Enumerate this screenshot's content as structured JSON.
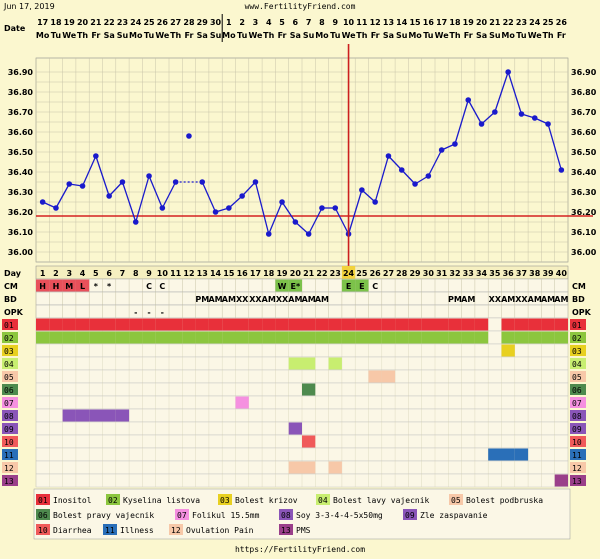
{
  "header": {
    "date": "Jun 17, 2019",
    "site_url": "www.FertilityFriend.com",
    "footer_url": "https://FertilityFriend.com"
  },
  "colors": {
    "background": "#fbf7cf",
    "temp_line": "#1a1acc",
    "coverline": "#d42020",
    "ovulation_line": "#cc1f1f",
    "grid": "#c8c4a8"
  },
  "chart_data": {
    "type": "line",
    "xlabel": "Day",
    "row_labels": {
      "date": "Date",
      "day": "Day",
      "cm": "CM",
      "bd": "BD",
      "opk": "OPK"
    },
    "dates": [
      "17",
      "18",
      "19",
      "20",
      "21",
      "22",
      "23",
      "24",
      "25",
      "26",
      "27",
      "28",
      "29",
      "30",
      "1",
      "2",
      "3",
      "4",
      "5",
      "6",
      "7",
      "8",
      "9",
      "10",
      "11",
      "12",
      "13",
      "14",
      "15",
      "16",
      "17",
      "18",
      "19",
      "20",
      "21",
      "22",
      "23",
      "24",
      "25",
      "26"
    ],
    "weekdays": [
      "Mo",
      "Tu",
      "We",
      "Th",
      "Fr",
      "Sa",
      "Su",
      "Mo",
      "Tu",
      "We",
      "Th",
      "Fr",
      "Sa",
      "Su",
      "Mo",
      "Tu",
      "We",
      "Th",
      "Fr",
      "Sa",
      "Su",
      "Mo",
      "Tu",
      "We",
      "Th",
      "Fr",
      "Sa",
      "Su",
      "Mo",
      "Tu",
      "We",
      "Th",
      "Fr",
      "Sa",
      "Su",
      "Mo",
      "Tu",
      "We",
      "Th",
      "Fr"
    ],
    "month_start_index": 14,
    "days": [
      1,
      2,
      3,
      4,
      5,
      6,
      7,
      8,
      9,
      10,
      11,
      12,
      13,
      14,
      15,
      16,
      17,
      18,
      19,
      20,
      21,
      22,
      23,
      24,
      25,
      26,
      27,
      28,
      29,
      30,
      31,
      32,
      33,
      34,
      35,
      36,
      37,
      38,
      39,
      40
    ],
    "y_ticks": [
      "36.90",
      "36.80",
      "36.70",
      "36.60",
      "36.50",
      "36.40",
      "36.30",
      "36.20",
      "36.10",
      "36.00"
    ],
    "ylim": [
      35.95,
      36.97
    ],
    "temps": [
      36.25,
      36.22,
      36.34,
      36.33,
      36.48,
      36.28,
      36.35,
      36.15,
      36.38,
      36.22,
      36.35,
      36.58,
      36.35,
      36.2,
      36.22,
      36.28,
      36.35,
      36.09,
      36.25,
      36.15,
      36.09,
      36.22,
      36.22,
      36.09,
      36.31,
      36.25,
      36.48,
      36.41,
      36.34,
      36.38,
      36.51,
      36.54,
      36.76,
      36.64,
      36.7,
      36.9,
      36.69,
      36.67,
      36.64,
      36.41
    ],
    "disconnected_day": 12,
    "dashed_segments": [
      [
        11,
        13
      ]
    ],
    "coverline": 36.18,
    "ovulation_day": 24,
    "cm": [
      "H",
      "H",
      "M",
      "L",
      "*",
      "*",
      "",
      "",
      "C",
      "C",
      "",
      "",
      "",
      "",
      "",
      "",
      "",
      "",
      "W",
      "E*",
      "",
      "",
      "",
      "E",
      "E",
      "C",
      "",
      "",
      "",
      "",
      "",
      "",
      "",
      "",
      "",
      "",
      "",
      "",
      "",
      ""
    ],
    "cm_colors": {
      "H": "#e8505a",
      "M": "#e8505a",
      "L": "#e8505a",
      "W": "#7cc24a",
      "E*": "#7cc24a",
      "E": "#7cc24a"
    },
    "bd": [
      "",
      "",
      "",
      "",
      "",
      "",
      "",
      "",
      "",
      "",
      "",
      "",
      "PM",
      "AM",
      "AM",
      "XX",
      "XX",
      "AM",
      "XX",
      "AM",
      "AM",
      "AM",
      "",
      "",
      "",
      "",
      "",
      "",
      "",
      "",
      "",
      "PM",
      "AM",
      "",
      "XX",
      "AM",
      "XX",
      "AM",
      "AM",
      "AM"
    ],
    "opk": [
      "",
      "",
      "",
      "",
      "",
      "",
      "",
      "-",
      "-",
      "-",
      "",
      "",
      "",
      "",
      "",
      "",
      "",
      "",
      "",
      "",
      "",
      "",
      "",
      "",
      "",
      "",
      "",
      "",
      "",
      "",
      "",
      "",
      "",
      "",
      "",
      "",
      "",
      "",
      "",
      ""
    ],
    "symptom_rows": [
      {
        "code": "01",
        "color": "#e8303a",
        "days": [
          1,
          2,
          3,
          4,
          5,
          6,
          7,
          8,
          9,
          10,
          11,
          12,
          13,
          14,
          15,
          16,
          17,
          18,
          19,
          20,
          21,
          22,
          23,
          24,
          25,
          26,
          27,
          28,
          29,
          30,
          31,
          32,
          33,
          34,
          36,
          37,
          38,
          39,
          40
        ]
      },
      {
        "code": "02",
        "color": "#8cc63e",
        "days": [
          1,
          2,
          3,
          4,
          5,
          6,
          7,
          8,
          9,
          10,
          11,
          12,
          13,
          14,
          15,
          16,
          17,
          18,
          19,
          20,
          21,
          22,
          23,
          24,
          25,
          26,
          27,
          28,
          29,
          30,
          31,
          32,
          33,
          34,
          36,
          37,
          38,
          39,
          40
        ]
      },
      {
        "code": "03",
        "color": "#e8d020",
        "days": [
          36
        ]
      },
      {
        "code": "04",
        "color": "#c8ee70",
        "days": [
          20,
          21,
          23
        ]
      },
      {
        "code": "05",
        "color": "#f7c8a8",
        "days": [
          26,
          27
        ]
      },
      {
        "code": "06",
        "color": "#4e8a4e",
        "days": [
          21
        ]
      },
      {
        "code": "07",
        "color": "#f590e0",
        "days": [
          16
        ]
      },
      {
        "code": "08",
        "color": "#8a55b8",
        "days": [
          3,
          4,
          5,
          6,
          7
        ]
      },
      {
        "code": "09",
        "color": "#8a55b8",
        "days": [
          20
        ]
      },
      {
        "code": "10",
        "color": "#f05a5a",
        "days": [
          21
        ]
      },
      {
        "code": "11",
        "color": "#2a6fb8",
        "days": [
          35,
          36,
          37
        ]
      },
      {
        "code": "12",
        "color": "#f7c8a8",
        "days": [
          20,
          21,
          23
        ]
      },
      {
        "code": "13",
        "color": "#9a3f8a",
        "days": [
          40
        ]
      }
    ],
    "legend": [
      {
        "code": "01",
        "label": "Inositol",
        "color": "#e8303a"
      },
      {
        "code": "02",
        "label": "Kyselina listova",
        "color": "#8cc63e"
      },
      {
        "code": "03",
        "label": "Bolest krizov",
        "color": "#e8d020"
      },
      {
        "code": "04",
        "label": "Bolest lavy vajecnik",
        "color": "#c8ee70"
      },
      {
        "code": "05",
        "label": "Bolest podbruska",
        "color": "#f7c8a8"
      },
      {
        "code": "06",
        "label": "Bolest pravy vajecnik",
        "color": "#4e8a4e"
      },
      {
        "code": "07",
        "label": "Folikul 15.5mm",
        "color": "#f590e0"
      },
      {
        "code": "08",
        "label": "Soy 3-3-4-4-5x50mg",
        "color": "#8a55b8"
      },
      {
        "code": "09",
        "label": "Zle zaspavanie",
        "color": "#8a55b8"
      },
      {
        "code": "10",
        "label": "Diarrhea",
        "color": "#f05a5a"
      },
      {
        "code": "11",
        "label": "Illness",
        "color": "#2a6fb8"
      },
      {
        "code": "12",
        "label": "Ovulation Pain",
        "color": "#f7c8a8"
      },
      {
        "code": "13",
        "label": "PMS",
        "color": "#9a3f8a"
      }
    ]
  }
}
